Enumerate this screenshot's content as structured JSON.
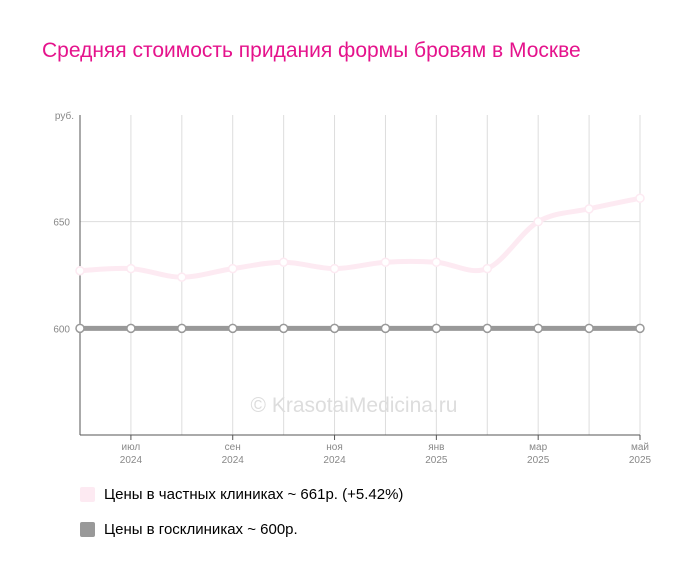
{
  "title": "Средняя стоимость придания формы бровям в Москве",
  "watermark": "© KrasotaiMedicina.ru",
  "chart_data": {
    "type": "line",
    "ylabel": "руб.",
    "ylim": [
      550,
      700
    ],
    "yticks": [
      600,
      650
    ],
    "grid": true,
    "x_count": 12,
    "x_ticks": [
      {
        "index": 1,
        "month": "июл",
        "year": "2024"
      },
      {
        "index": 3,
        "month": "сен",
        "year": "2024"
      },
      {
        "index": 5,
        "month": "ноя",
        "year": "2024"
      },
      {
        "index": 7,
        "month": "янв",
        "year": "2025"
      },
      {
        "index": 9,
        "month": "мар",
        "year": "2025"
      },
      {
        "index": 11,
        "month": "май",
        "year": "2025"
      }
    ],
    "series": [
      {
        "legend": "Цены в частных клиниках ~ 661р. (+5.42%)",
        "color": "#fdeaf2",
        "values": [
          627,
          628,
          624,
          628,
          631,
          628,
          631,
          631,
          628,
          650,
          656,
          661
        ]
      },
      {
        "legend": "Цены в госклиниках ~ 600р.",
        "color": "#999999",
        "values": [
          600,
          600,
          600,
          600,
          600,
          600,
          600,
          600,
          600,
          600,
          600,
          600
        ]
      }
    ]
  }
}
